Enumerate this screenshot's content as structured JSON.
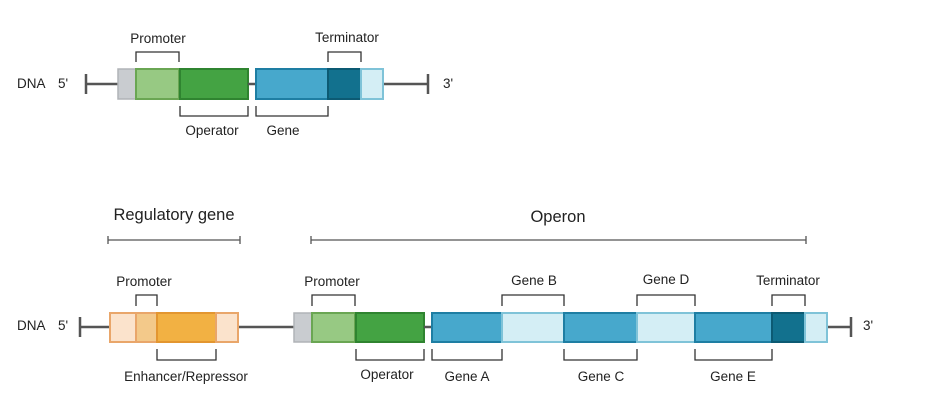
{
  "top_diagram": {
    "dna_label": "DNA",
    "five_prime": "5'",
    "three_prime": "3'",
    "promoter": "Promoter",
    "terminator": "Terminator",
    "operator": "Operator",
    "gene": "Gene"
  },
  "bottom_diagram": {
    "dna_label": "DNA",
    "five_prime": "5'",
    "three_prime": "3'",
    "regulatory_gene": "Regulatory gene",
    "operon": "Operon",
    "promoter_regulatory": "Promoter",
    "enhancer_repressor": "Enhancer/Repressor",
    "promoter_operon": "Promoter",
    "operator": "Operator",
    "gene_a": "Gene A",
    "gene_b": "Gene B",
    "gene_c": "Gene C",
    "gene_d": "Gene D",
    "gene_e": "Gene E",
    "terminator": "Terminator"
  },
  "colors": {
    "dna_line": "#555555",
    "spacer_gray": "#c9ccd0",
    "promoter_green": "#97c983",
    "operator_green": "#44a343",
    "gene_blue": "#47a8cc",
    "terminator_blue": "#12718e",
    "noncoding_blue": "#d4eef5",
    "regulatory_light": "#fbe3cc",
    "regulatory_mid": "#f3c98a",
    "enhancer_orange": "#f2b143"
  }
}
